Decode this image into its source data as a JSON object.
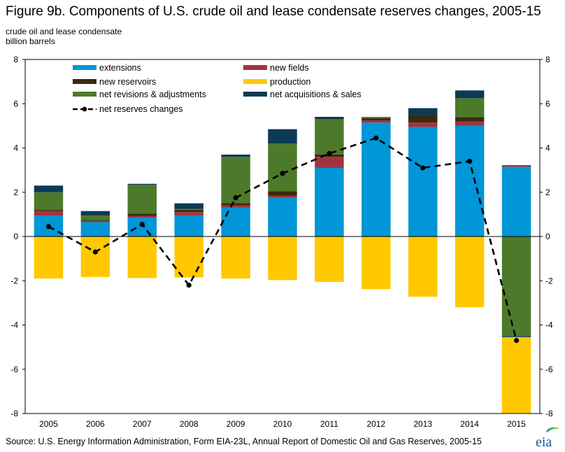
{
  "title": "Figure 9b. Components of U.S. crude oil and lease condensate reserves changes, 2005-15",
  "subtitle_line1": "crude oil and lease condensate",
  "subtitle_line2": "billion barrels",
  "source": "Source: U.S. Energy Information Administration, Form EIA-23L, Annual Report of Domestic Oil and Gas Reserves, 2005-15",
  "logo_text": "eia",
  "colors": {
    "extensions": "#0096d7",
    "new_fields": "#a33340",
    "new_reservoirs": "#3b2a0f",
    "net_revisions": "#4d7a2a",
    "net_acquisitions": "#0b3a55",
    "production": "#ffc800",
    "line": "#000000",
    "axis": "#000000",
    "grid": "#d9d9d9"
  },
  "chart_data": {
    "type": "bar",
    "stacked": true,
    "categories": [
      "2005",
      "2006",
      "2007",
      "2008",
      "2009",
      "2010",
      "2011",
      "2012",
      "2013",
      "2014",
      "2015"
    ],
    "ylim": [
      -8,
      8
    ],
    "yticks": [
      -8,
      -6,
      -4,
      -2,
      0,
      2,
      4,
      6,
      8
    ],
    "legend_position": "top",
    "series": [
      {
        "key": "extensions",
        "name": "extensions",
        "values": [
          0.95,
          0.65,
          0.85,
          0.95,
          1.3,
          1.75,
          3.1,
          5.15,
          4.95,
          5.0,
          3.15
        ]
      },
      {
        "key": "new_fields",
        "name": "new fields",
        "values": [
          0.2,
          0.05,
          0.08,
          0.15,
          0.1,
          0.1,
          0.5,
          0.1,
          0.2,
          0.2,
          0.05
        ]
      },
      {
        "key": "new_reservoirs",
        "name": "new reservoirs",
        "values": [
          0.05,
          0.05,
          0.1,
          0.1,
          0.1,
          0.2,
          0.1,
          0.1,
          0.35,
          0.2,
          0.02
        ]
      },
      {
        "key": "net_revisions",
        "name": "net revisions & adjustments",
        "values": [
          0.8,
          0.2,
          1.3,
          0.05,
          2.1,
          2.15,
          1.6,
          0.1,
          0.0,
          0.85,
          -4.5
        ]
      },
      {
        "key": "net_acquisitions",
        "name": "net acquisitions & sales",
        "values": [
          0.3,
          0.2,
          0.05,
          0.25,
          0.1,
          0.65,
          0.2,
          0.05,
          0.3,
          0.35,
          -0.05
        ]
      },
      {
        "key": "production",
        "name": "production",
        "values": [
          -1.9,
          -1.83,
          -1.88,
          -1.85,
          -1.9,
          -1.97,
          -2.05,
          -2.38,
          -2.72,
          -3.2,
          -3.43
        ]
      }
    ],
    "line_series": {
      "name": "net reserves changes",
      "values": [
        0.45,
        -0.7,
        0.55,
        -2.2,
        1.75,
        2.85,
        3.75,
        4.45,
        3.1,
        3.4,
        -4.7
      ]
    },
    "legend": [
      {
        "key": "extensions",
        "label": "extensions",
        "kind": "bar"
      },
      {
        "key": "new_fields",
        "label": "new fields",
        "kind": "bar"
      },
      {
        "key": "new_reservoirs",
        "label": "new reservoirs",
        "kind": "bar"
      },
      {
        "key": "production",
        "label": "production",
        "kind": "bar"
      },
      {
        "key": "net_revisions",
        "label": "net revisions & adjustments",
        "kind": "bar"
      },
      {
        "key": "net_acquisitions",
        "label": "net acquisitions & sales",
        "kind": "bar"
      },
      {
        "key": "line",
        "label": "net reserves changes",
        "kind": "line"
      }
    ]
  }
}
